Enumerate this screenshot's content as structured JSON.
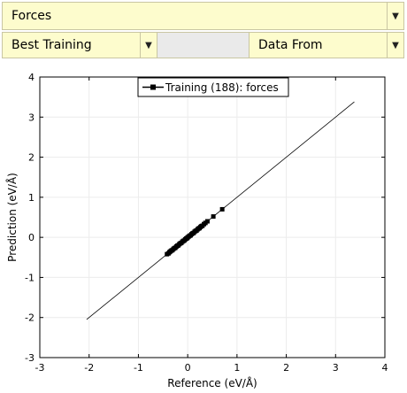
{
  "controls": {
    "property_select": "Forces",
    "model_select": "Best Training",
    "source_select": "Data From"
  },
  "chart_data": {
    "type": "scatter",
    "xlabel": "Reference (eV/Å)",
    "ylabel": "Prediction (eV/Å)",
    "xlim": [
      -3,
      4
    ],
    "ylim": [
      -3,
      4
    ],
    "xticks": [
      "-3",
      "-2",
      "-1",
      "0",
      "1",
      "2",
      "3",
      "4"
    ],
    "yticks": [
      "-3",
      "-2",
      "-1",
      "0",
      "1",
      "2",
      "3",
      "4"
    ],
    "grid": true,
    "legend_position": "top-center",
    "reference_line": {
      "x": [
        -2.05,
        3.38
      ],
      "y": [
        -2.05,
        3.38
      ]
    },
    "series": [
      {
        "name": "Training (188): forces",
        "x": [
          -0.42,
          -0.39,
          -0.37,
          -0.35,
          -0.33,
          -0.31,
          -0.29,
          -0.27,
          -0.25,
          -0.23,
          -0.21,
          -0.19,
          -0.17,
          -0.15,
          -0.13,
          -0.11,
          -0.09,
          -0.07,
          -0.05,
          -0.03,
          -0.01,
          0.0,
          0.02,
          0.04,
          0.06,
          0.08,
          0.1,
          0.12,
          0.14,
          0.16,
          0.18,
          0.2,
          0.22,
          0.24,
          0.26,
          0.28,
          0.3,
          0.33,
          0.36,
          0.4,
          0.52,
          0.7
        ],
        "y": [
          -0.42,
          -0.4,
          -0.37,
          -0.35,
          -0.33,
          -0.32,
          -0.29,
          -0.27,
          -0.26,
          -0.23,
          -0.21,
          -0.2,
          -0.17,
          -0.15,
          -0.14,
          -0.11,
          -0.09,
          -0.08,
          -0.05,
          -0.03,
          -0.02,
          0.0,
          0.02,
          0.04,
          0.05,
          0.08,
          0.1,
          0.11,
          0.14,
          0.16,
          0.17,
          0.2,
          0.22,
          0.23,
          0.26,
          0.28,
          0.29,
          0.33,
          0.36,
          0.4,
          0.52,
          0.7
        ]
      }
    ]
  }
}
